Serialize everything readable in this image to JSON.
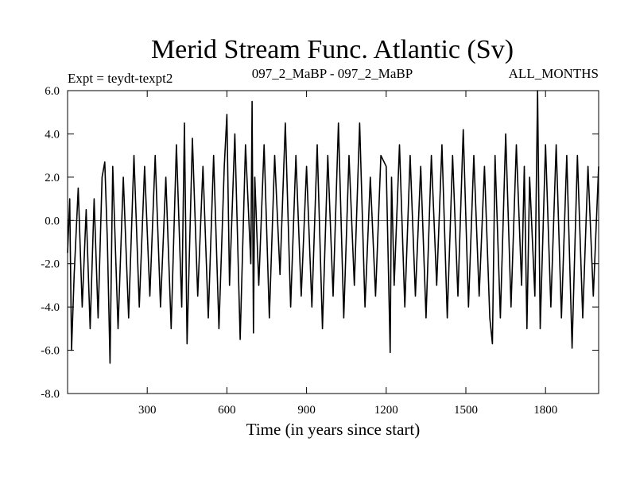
{
  "chart_data": {
    "type": "line",
    "title": "Merid Stream Func. Atlantic (Sv)",
    "header_left": "Expt = teydt-texpt2",
    "header_center": "097_2_MaBP - 097_2_MaBP",
    "header_right": "ALL_MONTHS",
    "xlabel": "Time (in years since start)",
    "ylabel": "",
    "xlim": [
      0,
      2000
    ],
    "ylim": [
      -8.0,
      6.0
    ],
    "xticks": [
      300,
      600,
      900,
      1200,
      1500,
      1800
    ],
    "xtick_labels": [
      "300",
      "600",
      "900",
      "1200",
      "1500",
      "1800"
    ],
    "yticks": [
      -8.0,
      -6.0,
      -4.0,
      -2.0,
      0.0,
      2.0,
      4.0,
      6.0
    ],
    "ytick_labels": [
      "-8.0",
      "-6.0",
      "-4.0",
      "-2.0",
      "0.0",
      "2.0",
      "4.0",
      "6.0"
    ],
    "zero_line": 0.0,
    "series": [
      {
        "name": "Merid Stream Func. Atlantic",
        "color": "#000000",
        "x": [
          0,
          8,
          15,
          25,
          40,
          55,
          70,
          85,
          100,
          115,
          130,
          140,
          150,
          160,
          170,
          190,
          210,
          230,
          250,
          270,
          290,
          310,
          330,
          350,
          370,
          390,
          410,
          430,
          440,
          450,
          470,
          490,
          510,
          530,
          550,
          570,
          590,
          600,
          610,
          630,
          650,
          670,
          690,
          695,
          700,
          705,
          720,
          740,
          760,
          780,
          800,
          820,
          840,
          860,
          880,
          900,
          920,
          940,
          960,
          980,
          1000,
          1020,
          1040,
          1060,
          1080,
          1100,
          1120,
          1140,
          1160,
          1180,
          1200,
          1215,
          1220,
          1230,
          1250,
          1270,
          1290,
          1310,
          1330,
          1350,
          1370,
          1390,
          1410,
          1430,
          1450,
          1470,
          1490,
          1510,
          1530,
          1550,
          1570,
          1590,
          1600,
          1610,
          1630,
          1650,
          1670,
          1690,
          1710,
          1720,
          1730,
          1740,
          1760,
          1770,
          1780,
          1800,
          1820,
          1840,
          1860,
          1880,
          1900,
          1920,
          1940,
          1960,
          1980,
          2000
        ],
        "values": [
          -1.5,
          1.0,
          -6.0,
          -2.5,
          1.5,
          -4.0,
          0.5,
          -5.0,
          1.0,
          -4.5,
          2.0,
          2.7,
          -1.0,
          -6.6,
          2.5,
          -5.0,
          2.0,
          -4.5,
          3.0,
          -4.0,
          2.5,
          -3.5,
          3.0,
          -4.0,
          2.0,
          -5.0,
          3.5,
          -4.0,
          4.5,
          -5.7,
          3.8,
          -3.5,
          2.5,
          -4.5,
          3.0,
          -5.0,
          2.5,
          4.9,
          -3.0,
          4.0,
          -5.5,
          3.5,
          -2.0,
          5.5,
          -5.2,
          2.0,
          -3.0,
          3.5,
          -4.5,
          3.0,
          -2.5,
          4.5,
          -4.0,
          3.0,
          -3.5,
          2.5,
          -4.0,
          3.5,
          -5.0,
          3.0,
          -3.5,
          4.5,
          -4.5,
          3.0,
          -3.0,
          4.5,
          -4.0,
          2.0,
          -3.5,
          3.0,
          2.5,
          -6.1,
          2.0,
          -3.0,
          3.5,
          -4.0,
          3.0,
          -3.5,
          2.5,
          -4.5,
          3.0,
          -3.0,
          3.5,
          -4.5,
          3.0,
          -3.5,
          4.2,
          -4.0,
          3.0,
          -3.5,
          2.5,
          -4.5,
          -5.7,
          3.0,
          -4.5,
          4.0,
          -4.0,
          3.5,
          -3.0,
          2.5,
          -5.0,
          2.0,
          -3.5,
          6.0,
          -5.0,
          3.5,
          -4.0,
          3.5,
          -4.5,
          3.0,
          -5.9,
          3.0,
          -4.5,
          2.5,
          -3.5,
          2.5
        ]
      }
    ]
  }
}
